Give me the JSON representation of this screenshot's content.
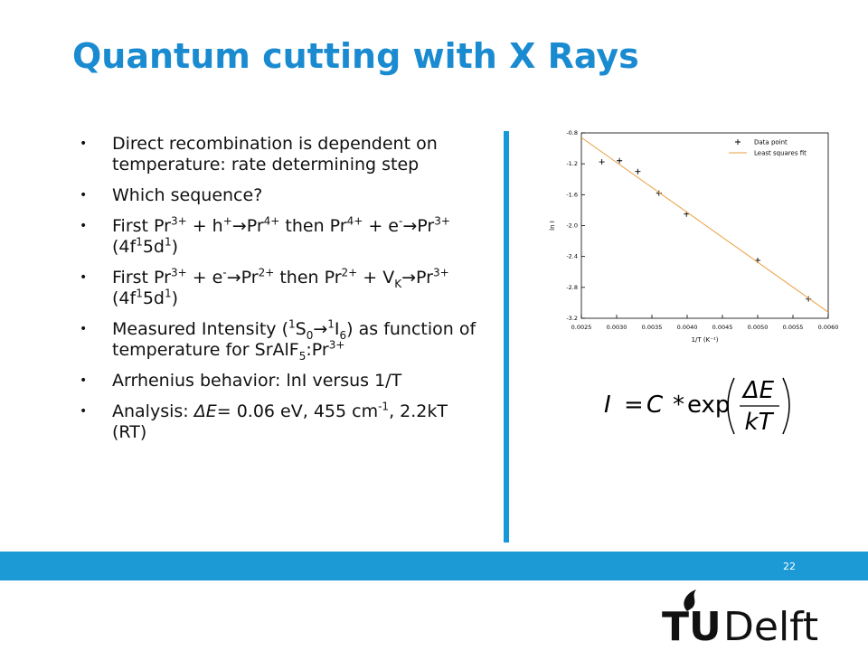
{
  "title": "Quantum cutting with X Rays",
  "bullets": [
    [
      {
        "t": "Direct recombination is dependent on temperature: rate determining step"
      }
    ],
    [
      {
        "t": "Which sequence?"
      }
    ],
    [
      {
        "t": "First Pr"
      },
      {
        "sup": "3+"
      },
      {
        "t": " + h"
      },
      {
        "sup": "+"
      },
      {
        "t": "→Pr"
      },
      {
        "sup": "4+"
      },
      {
        "t": " then Pr"
      },
      {
        "sup": "4+"
      },
      {
        "t": " + e"
      },
      {
        "sup": "-"
      },
      {
        "t": "→Pr"
      },
      {
        "sup": "3+"
      },
      {
        "t": " (4f"
      },
      {
        "sup": "1"
      },
      {
        "t": "5d"
      },
      {
        "sup": "1"
      },
      {
        "t": ")"
      }
    ],
    [
      {
        "t": "First Pr"
      },
      {
        "sup": "3+"
      },
      {
        "t": " + e"
      },
      {
        "sup": "-"
      },
      {
        "t": "→Pr"
      },
      {
        "sup": "2+"
      },
      {
        "t": " then Pr"
      },
      {
        "sup": "2+"
      },
      {
        "t": " + V"
      },
      {
        "sub": "K"
      },
      {
        "t": "→Pr"
      },
      {
        "sup": "3+"
      },
      {
        "t": " (4f"
      },
      {
        "sup": "1"
      },
      {
        "t": "5d"
      },
      {
        "sup": "1"
      },
      {
        "t": ")"
      }
    ],
    [
      {
        "t": "Measured Intensity ("
      },
      {
        "sup": "1"
      },
      {
        "t": "S"
      },
      {
        "sub": "0"
      },
      {
        "t": "→"
      },
      {
        "sup": "1"
      },
      {
        "t": "I"
      },
      {
        "sub": "6"
      },
      {
        "t": ") as function of temperature for SrAlF"
      },
      {
        "sub": "5"
      },
      {
        "t": ":Pr"
      },
      {
        "sup": "3+"
      }
    ],
    [
      {
        "t": "Arrhenius behavior: lnI versus 1/T"
      }
    ],
    [
      {
        "t": "Analysis: "
      },
      {
        "i": "ΔE"
      },
      {
        "t": "= 0.06 eV, 455 cm"
      },
      {
        "sup": "-1"
      },
      {
        "t": ", 2.2kT (RT)"
      }
    ]
  ],
  "chart_data": {
    "type": "scatter",
    "x_label": "1/T (K⁻¹)",
    "y_label": "ln I",
    "xlim": [
      0.0025,
      0.006
    ],
    "xticks": [
      {
        "value": 0.0025,
        "label": "0.0025"
      },
      {
        "value": 0.003,
        "label": "0.0030"
      },
      {
        "value": 0.0035,
        "label": "0.0035"
      },
      {
        "value": 0.004,
        "label": "0.0040"
      },
      {
        "value": 0.0045,
        "label": "0.0045"
      },
      {
        "value": 0.005,
        "label": "0.0050"
      },
      {
        "value": 0.0055,
        "label": "0.0055"
      },
      {
        "value": 0.006,
        "label": "0.0060"
      }
    ],
    "ylim": [
      -3.2,
      -0.8
    ],
    "yticks": [
      -3.2,
      -2.8,
      -2.4,
      {
        "value": -2.0,
        "label": "-2.0"
      },
      -1.6,
      -1.2,
      -0.8
    ],
    "legend": "top-right",
    "series": [
      {
        "name": "Data point",
        "type": "scatter",
        "color": "#000000",
        "x": [
          0.00279,
          0.00304,
          0.0033,
          0.0036,
          0.00399,
          0.005,
          0.00572
        ],
        "values": [
          -1.175,
          -1.16,
          -1.3,
          -1.58,
          -1.85,
          -2.45,
          -2.95
        ]
      },
      {
        "name": "Least squares fit",
        "type": "line",
        "color": "#e8a040",
        "x": [
          0.0025,
          0.006
        ],
        "values": [
          -0.86,
          -3.12
        ]
      }
    ]
  },
  "formula": {
    "lhs": "I",
    "eq": "=",
    "c": "C",
    "op": "*",
    "fn": "exp",
    "num": "ΔE",
    "den": "kT"
  },
  "page_number": "22",
  "logo": {
    "tu": "TU",
    "delft": "Delft"
  }
}
